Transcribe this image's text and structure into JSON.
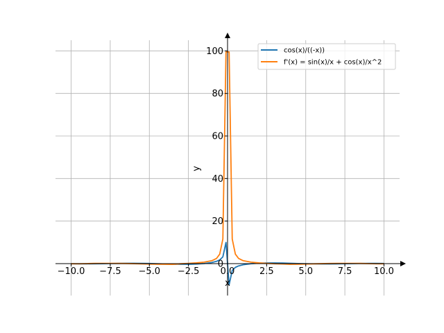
{
  "chart_data": {
    "type": "line",
    "title": "",
    "xlabel": "x",
    "ylabel": "y",
    "xlim": [
      -11,
      11
    ],
    "ylim": [
      -15,
      105
    ],
    "grid": true,
    "legend_position": "top-right",
    "x_ticks": [
      -10,
      -7.5,
      -5,
      -2.5,
      0,
      2.5,
      5,
      7.5,
      10
    ],
    "x_tick_labels": [
      "−10.0",
      "−7.5",
      "−5.0",
      "−2.5",
      "0.0",
      "2.5",
      "5.0",
      "7.5",
      "10.0"
    ],
    "y_ticks": [
      0,
      20,
      40,
      60,
      80,
      100
    ],
    "y_tick_labels": [
      "0",
      "20",
      "40",
      "60",
      "80",
      "100"
    ],
    "x": [
      -10,
      -9.5,
      -9,
      -8.5,
      -8,
      -7.5,
      -7,
      -6.5,
      -6,
      -5.5,
      -5,
      -4.5,
      -4,
      -3.5,
      -3,
      -2.5,
      -2,
      -1.5,
      -1,
      -0.7,
      -0.5,
      -0.3,
      -0.1,
      0.1,
      0.3,
      0.5,
      0.7,
      1,
      1.5,
      2,
      2.5,
      3,
      3.5,
      4,
      4.5,
      5,
      5.5,
      6,
      6.5,
      7,
      7.5,
      8,
      8.5,
      9,
      9.5,
      10
    ],
    "series": [
      {
        "name": "cos(x)/((-x))",
        "color": "#1f77b4",
        "values": [
          -0.084,
          -0.105,
          -0.101,
          -0.071,
          -0.018,
          0.046,
          0.108,
          0.154,
          0.16,
          0.129,
          0.057,
          -0.047,
          -0.163,
          -0.267,
          -0.33,
          -0.32,
          -0.208,
          0.047,
          0.54,
          1.093,
          1.755,
          3.184,
          9.95,
          -9.95,
          -3.184,
          -1.755,
          -1.093,
          -0.54,
          -0.047,
          0.208,
          0.32,
          0.33,
          0.267,
          0.163,
          0.047,
          -0.057,
          -0.129,
          -0.16,
          -0.154,
          -0.108,
          -0.046,
          0.018,
          0.071,
          0.101,
          0.105,
          0.084
        ]
      },
      {
        "name": "f'(x) = sin(x)/x + cos(x)/x^2",
        "color": "#ff7f0e",
        "values": [
          -0.063,
          -0.091,
          -0.005,
          0.103,
          0.121,
          0.13,
          0.109,
          0.057,
          -0.02,
          -0.1,
          -0.18,
          -0.264,
          -0.33,
          -0.35,
          -0.063,
          0.111,
          0.351,
          0.696,
          1.382,
          2.481,
          4.469,
          11.57,
          99.5,
          99.5,
          11.57,
          4.469,
          2.481,
          1.382,
          0.696,
          0.351,
          0.111,
          -0.063,
          -0.15,
          -0.33,
          -0.264,
          -0.18,
          -0.1,
          -0.02,
          0.057,
          0.109,
          0.13,
          0.121,
          0.103,
          -0.005,
          -0.091,
          -0.063
        ]
      }
    ]
  }
}
